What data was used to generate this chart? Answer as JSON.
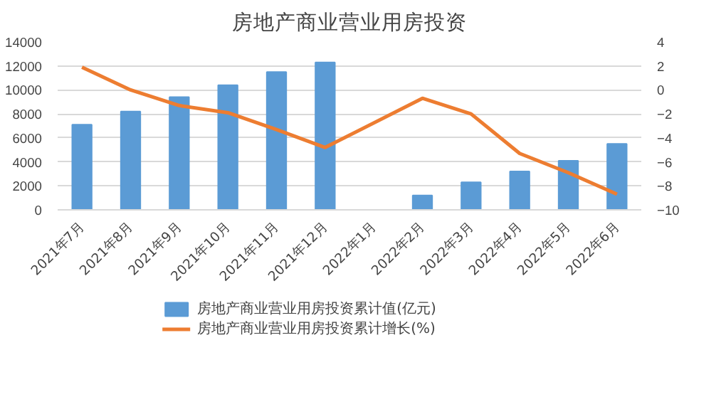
{
  "chart_data": {
    "type": "bar",
    "title": "房地产商业营业用房投资",
    "categories": [
      "2021年7月",
      "2021年8月",
      "2021年9月",
      "2021年10月",
      "2021年11月",
      "2021年12月",
      "2022年1月",
      "2022年2月",
      "2022年3月",
      "2022年4月",
      "2022年5月",
      "2022年6月"
    ],
    "series": [
      {
        "name": "房地产商业营业用房投资累计值(亿元)",
        "color": "#5b9bd5",
        "values": [
          7100,
          8200,
          9400,
          10400,
          11500,
          12300,
          null,
          1200,
          2300,
          3200,
          4100,
          5500
        ]
      },
      {
        "name": "房地产商业营业用房投资累计增长(%)",
        "color": "#ed7d31",
        "type": "line",
        "axis": "y2",
        "values": [
          1.9,
          0.0,
          -1.3,
          -1.9,
          -3.3,
          -4.8,
          null,
          -0.7,
          -2.0,
          -5.3,
          -6.9,
          -8.7
        ]
      }
    ],
    "ylim": [
      0,
      14000
    ],
    "yticks": [
      0,
      2000,
      4000,
      6000,
      8000,
      10000,
      12000,
      14000
    ],
    "y2lim": [
      -10,
      4
    ],
    "y2ticks": [
      -10,
      -8,
      -6,
      -4,
      -2,
      0,
      2,
      4
    ],
    "grid": "y",
    "legend": "bottom",
    "marker": "none"
  }
}
